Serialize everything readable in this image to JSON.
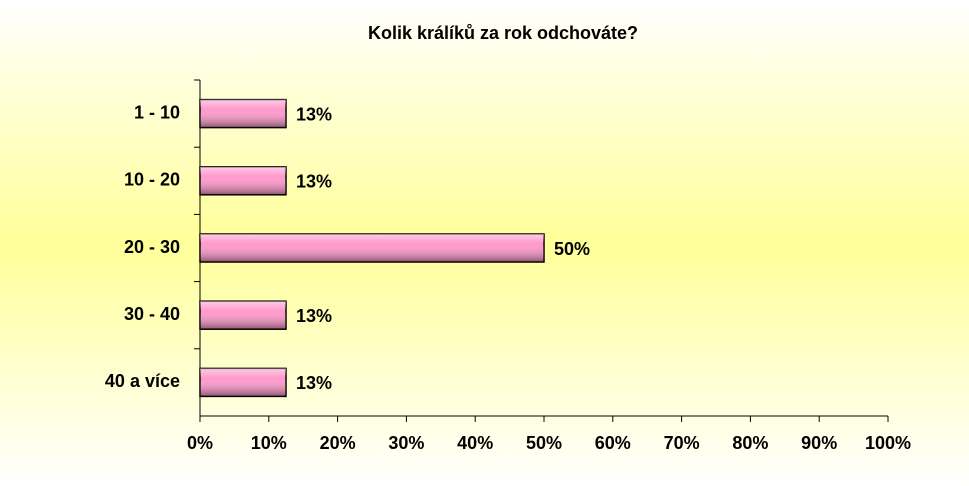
{
  "chart_data": {
    "type": "hbar",
    "title": "Kolik králíků za rok odchováte?",
    "categories": [
      "1 - 10",
      "10 - 20",
      "20 - 30",
      "30 - 40",
      "40 a více"
    ],
    "values": [
      12.5,
      12.5,
      50,
      12.5,
      12.5
    ],
    "value_labels": [
      "13%",
      "13%",
      "50%",
      "13%",
      "13%"
    ],
    "color": "#ff99cc",
    "xlim": [
      0,
      100
    ],
    "xticks": [
      {
        "value": 0,
        "label": "0%"
      },
      {
        "value": 10,
        "label": "10%"
      },
      {
        "value": 20,
        "label": "20%"
      },
      {
        "value": 30,
        "label": "30%"
      },
      {
        "value": 40,
        "label": "40%"
      },
      {
        "value": 50,
        "label": "50%"
      },
      {
        "value": 60,
        "label": "60%"
      },
      {
        "value": 70,
        "label": "70%"
      },
      {
        "value": 80,
        "label": "80%"
      },
      {
        "value": 90,
        "label": "90%"
      },
      {
        "value": 100,
        "label": "100%"
      }
    ]
  }
}
